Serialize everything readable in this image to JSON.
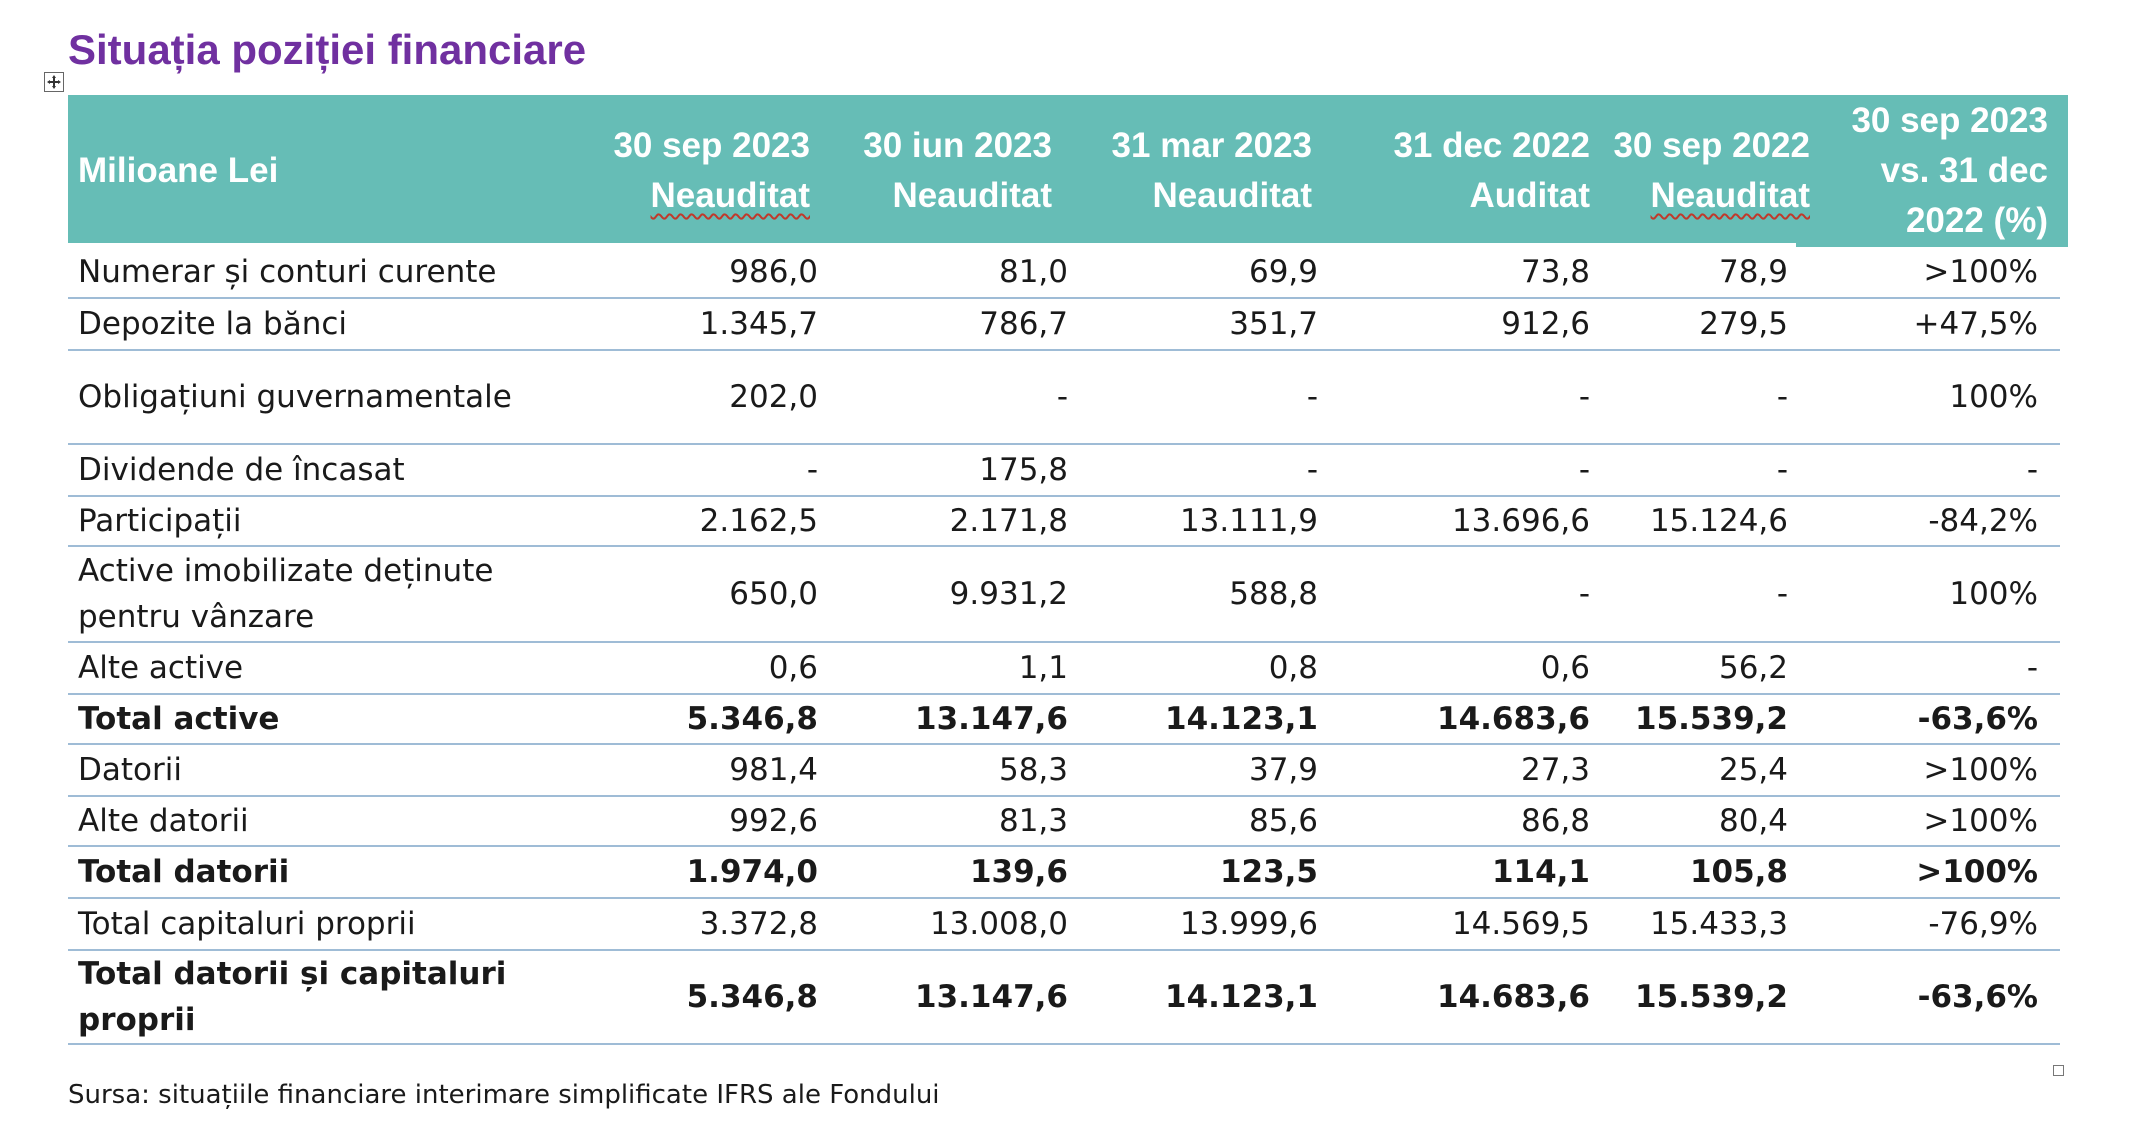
{
  "title": "Situația poziției financiare",
  "table": {
    "header": {
      "label": "Milioane Lei",
      "columns": [
        {
          "line1": "30 sep 2023",
          "line2": "Neauditat"
        },
        {
          "line1": "30 iun 2023",
          "line2": "Neauditat"
        },
        {
          "line1": "31 mar 2023",
          "line2": "Neauditat"
        },
        {
          "line1": "31 dec 2022",
          "line2": "Auditat"
        },
        {
          "line1": "30 sep 2022",
          "line2": "Neauditat"
        },
        {
          "line1": "30 sep 2023",
          "line2": "vs. 31 dec",
          "line3": "2022 (%)"
        }
      ]
    },
    "rows": [
      {
        "label": "Numerar și conturi curente",
        "values": [
          "986,0",
          "81,0",
          "69,9",
          "73,8",
          "78,9",
          ">100%"
        ],
        "bold": false
      },
      {
        "label": "Depozite la bănci",
        "values": [
          "1.345,7",
          "786,7",
          "351,7",
          "912,6",
          "279,5",
          "+47,5%"
        ],
        "bold": false
      },
      {
        "label": "Obligațiuni guvernamentale",
        "values": [
          "202,0",
          "-",
          "-",
          "-",
          "-",
          "100%"
        ],
        "bold": false
      },
      {
        "label": "Dividende de încasat",
        "values": [
          "-",
          "175,8",
          "-",
          "-",
          "-",
          "-"
        ],
        "bold": false
      },
      {
        "label": "Participații",
        "values": [
          "2.162,5",
          "2.171,8",
          "13.111,9",
          "13.696,6",
          "15.124,6",
          "-84,2%"
        ],
        "bold": false
      },
      {
        "label": "Active imobilizate deținute pentru vânzare",
        "values": [
          "650,0",
          "9.931,2",
          "588,8",
          "-",
          "-",
          "100%"
        ],
        "bold": false
      },
      {
        "label": "Alte active",
        "values": [
          "0,6",
          "1,1",
          "0,8",
          "0,6",
          "56,2",
          "-"
        ],
        "bold": false
      },
      {
        "label": "Total active",
        "values": [
          "5.346,8",
          "13.147,6",
          "14.123,1",
          "14.683,6",
          "15.539,2",
          "-63,6%"
        ],
        "bold": true
      },
      {
        "label": "Datorii",
        "values": [
          "981,4",
          "58,3",
          "37,9",
          "27,3",
          "25,4",
          ">100%"
        ],
        "bold": false
      },
      {
        "label": "Alte datorii",
        "values": [
          "992,6",
          "81,3",
          "85,6",
          "86,8",
          "80,4",
          ">100%"
        ],
        "bold": false
      },
      {
        "label": "Total datorii",
        "values": [
          "1.974,0",
          "139,6",
          "123,5",
          "114,1",
          "105,8",
          ">100%"
        ],
        "bold": true
      },
      {
        "label": "Total capitaluri proprii",
        "values": [
          "3.372,8",
          "13.008,0",
          "13.999,6",
          "14.569,5",
          "15.433,3",
          "-76,9%"
        ],
        "bold": false
      },
      {
        "label": "Total datorii și capitaluri proprii",
        "values": [
          "5.346,8",
          "13.147,6",
          "14.123,1",
          "14.683,6",
          "15.539,2",
          "-63,6%"
        ],
        "bold": true
      }
    ]
  },
  "source_note": "Sursa: situațiile financiare interimare simplificate IFRS ale Fondului",
  "colors": {
    "title": "#7030a0",
    "header_background": "#66bdb6",
    "header_text": "#ffffff",
    "row_divider": "#9fbcd6"
  },
  "icons": {
    "table_move_handle": "move-arrows-icon",
    "table_resize_handle": "resize-handle-icon"
  }
}
